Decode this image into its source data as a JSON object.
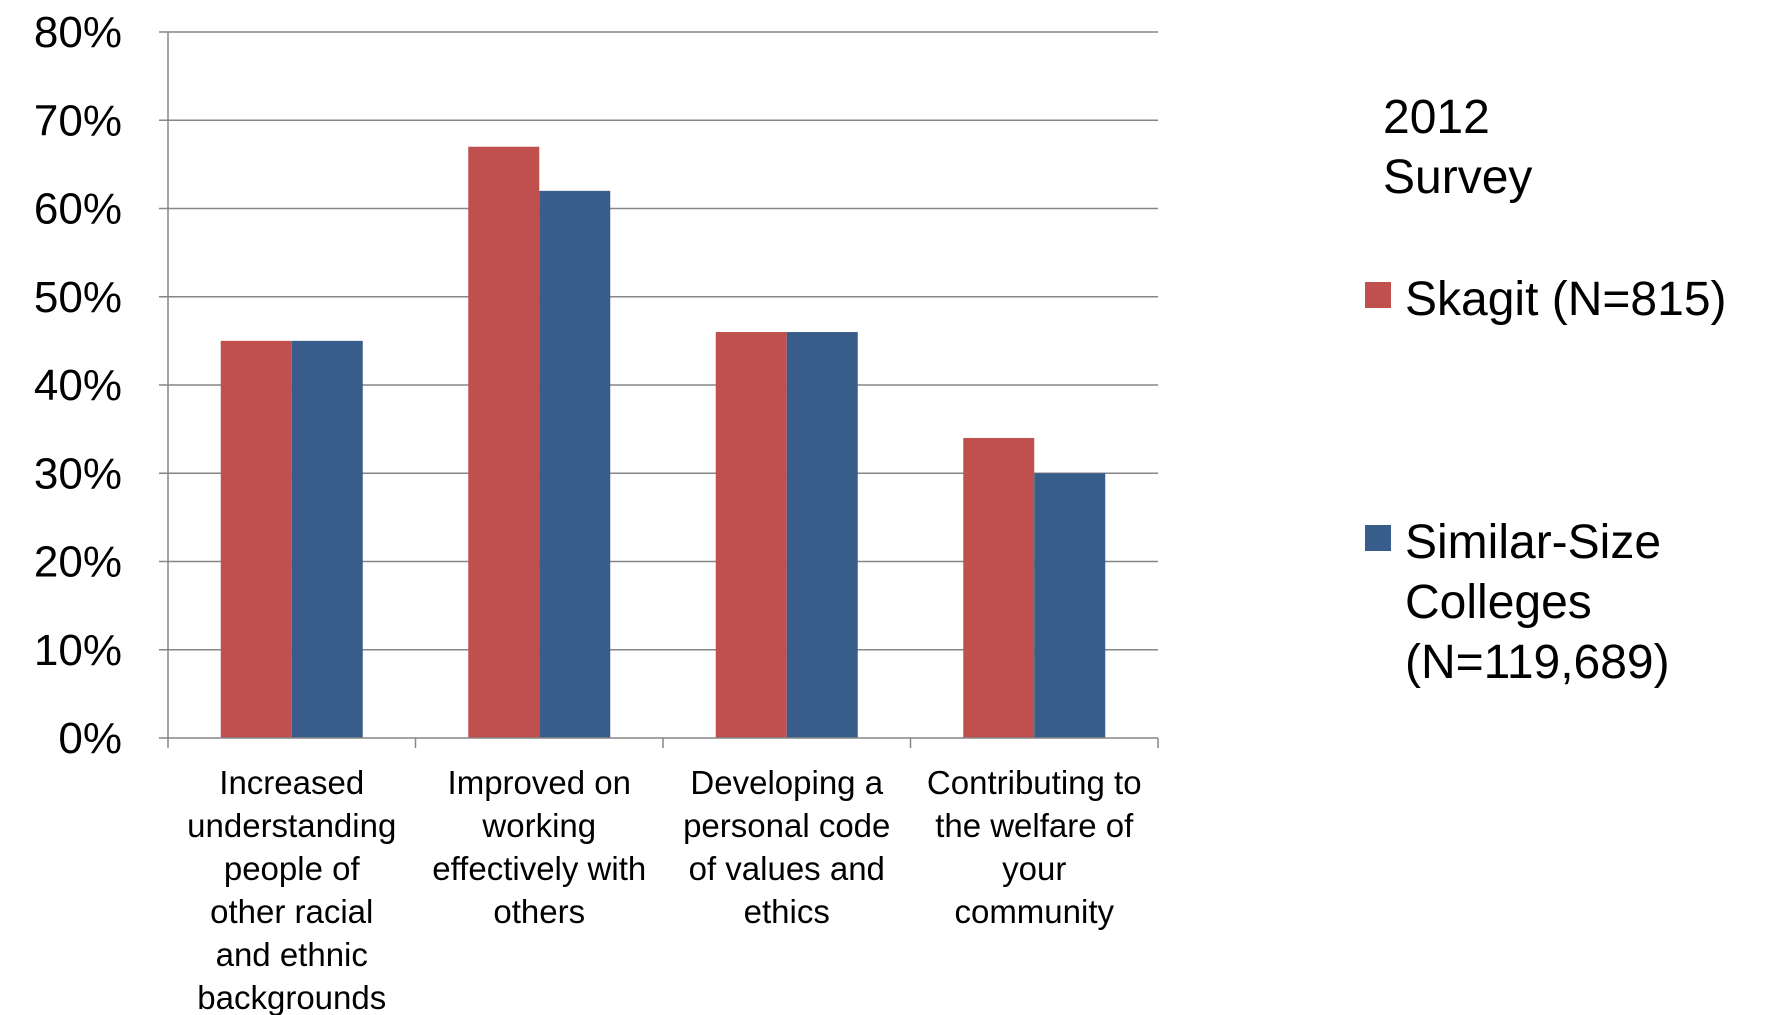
{
  "chart_data": {
    "type": "bar",
    "categories": [
      [
        "Increased",
        "understanding",
        "people of",
        "other racial",
        "and ethnic",
        "backgrounds"
      ],
      [
        "Improved on",
        "working",
        "effectively with",
        "others"
      ],
      [
        "Developing a",
        "personal code",
        "of values and",
        "ethics"
      ],
      [
        "Contributing to",
        "the welfare of",
        "your",
        "community"
      ]
    ],
    "series": [
      {
        "name": "Skagit (N=815)",
        "values": [
          45,
          67,
          46,
          34
        ],
        "color": "#c0504d"
      },
      {
        "name": [
          "Similar-Size",
          "Colleges",
          "(N=119,689)"
        ],
        "values": [
          45,
          62,
          46,
          30
        ],
        "color": "#385d8a"
      }
    ],
    "ylim": [
      0,
      80
    ],
    "yticks": [
      0,
      10,
      20,
      30,
      40,
      50,
      60,
      70,
      80
    ],
    "ytick_suffix": "%",
    "grid": true,
    "legend": {
      "title": [
        "2012",
        "Survey"
      ],
      "position": "right"
    }
  }
}
